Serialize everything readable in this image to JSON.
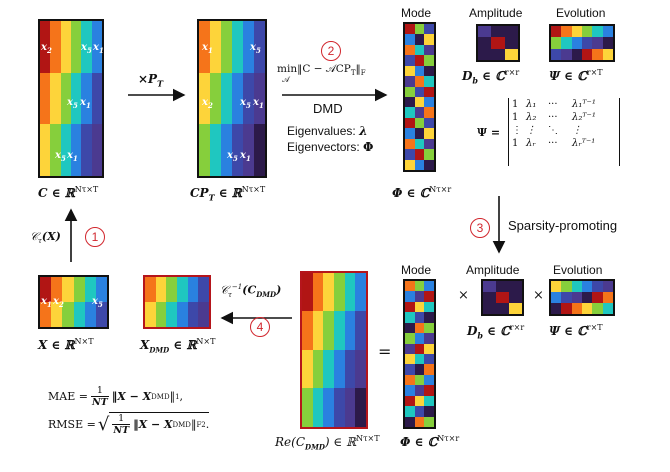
{
  "matrix_labels": {
    "C": "C ∈ ℝ",
    "C_sup": "Nτ×T",
    "CP": "CP",
    "CP_sub": "T",
    "CP_rest": " ∈ ℝ",
    "CP_sup": "Nτ×T",
    "Phi": "Φ ∈ ℂ",
    "Phi_sup": "Nτ×r",
    "Db": "D",
    "Db_sub": "b",
    "Db_rest": " ∈ ℂ",
    "Db_sup": "r×r",
    "Psi": "Ψ ∈ ℂ",
    "Psi_sup": "r×T",
    "X": "X ∈ ℝ",
    "X_sup": "N×T",
    "Xdmd": "X",
    "Xdmd_sub": "DMD",
    "Xdmd_rest": " ∈ ℝ",
    "Xdmd_sup": "N×T",
    "Re_lhs": "Re(C",
    "Re_sub": "DMD",
    "Re_rest": ") ∈ ℝ",
    "Re_sup": "Nτ×T",
    "Phi2": "Φ ∈ ℂ",
    "Phi2_sup": "Nτ×r",
    "Db2": "D",
    "Db2_sub": "b",
    "Db2_rest": " ∈ ℂ",
    "Db2_sup": "r×r",
    "Psi2": "Ψ ∈ ℂ",
    "Psi2_sup": "r×T"
  },
  "headers": {
    "mode_top": "Mode",
    "amplitude_top": "Amplitude",
    "evolution_top": "Evolution",
    "mode_bottom": "Mode",
    "amplitude_bottom": "Amplitude",
    "evolution_bottom": "Evolution"
  },
  "steps": {
    "step1": "1",
    "step2": "2",
    "step3": "3",
    "step4": "4"
  },
  "arrows": {
    "times_pt": "×P",
    "times_pt_sub": "T",
    "dmd_label": "DMD",
    "objective": "min‖C − 𝒜CP",
    "objective_sub": "T",
    "objective_end": "‖",
    "objective_norm_sub": "F",
    "objective_under": "𝒜",
    "eigenvalues": "Eigenvalues:",
    "eigenvalues_sym": "λ",
    "eigenvectors": "Eigenvectors:",
    "eigenvectors_sym": "Φ",
    "sparsity": "Sparsity-promoting",
    "ctau": "𝒞",
    "ctau_sub": "τ",
    "ctau_arg": "(X)",
    "ctau_inv": "𝒞",
    "ctau_inv_sub": "τ",
    "ctau_inv_sup": "−1",
    "ctau_inv_arg": "(C",
    "ctau_inv_arg_sub": "DMD",
    "ctau_inv_arg_end": ")"
  },
  "psi_matrix": {
    "lhs": "Ψ =",
    "rows": [
      [
        "1",
        "λ₁",
        "···",
        "λ₁ᵀ⁻¹"
      ],
      [
        "1",
        "λ₂",
        "···",
        "λ₂ᵀ⁻¹"
      ],
      [
        "⋮",
        "⋮",
        "⋱",
        "⋮"
      ],
      [
        "1",
        "λᵣ",
        "···",
        "λᵣᵀ⁻¹"
      ]
    ]
  },
  "operators": {
    "times1": "×",
    "times2": "×",
    "equals": "="
  },
  "cell_overlays": {
    "c_x2": "x",
    "c_x2_sub": "2",
    "c_x5a": "x",
    "c_x5a_sub": "5",
    "c_x1a": "x",
    "c_x1a_sub": "1",
    "c_x5b": "x",
    "c_x5b_sub": "5",
    "c_x1b": "x",
    "c_x1b_sub": "1",
    "c_x5c": "x",
    "c_x5c_sub": "5",
    "c_x1c": "x",
    "c_x1c_sub": "1",
    "cp_x1a": "x",
    "cp_x1a_sub": "1",
    "cp_x5a": "x",
    "cp_x5a_sub": "5",
    "cp_x2": "x",
    "cp_x2_sub": "2",
    "cp_x5b": "x",
    "cp_x5b_sub": "5",
    "cp_x1b": "x",
    "cp_x1b_sub": "1",
    "cp_x5c": "x",
    "cp_x5c_sub": "5",
    "cp_x1c": "x",
    "cp_x1c_sub": "1",
    "x_x1": "x",
    "x_x1_sub": "1",
    "x_x2": "x",
    "x_x2_sub": "2",
    "x_x5": "x",
    "x_x5_sub": "5"
  },
  "metrics": {
    "mae_lhs": "MAE =",
    "mae_frac_num": "1",
    "mae_frac_den": "NT",
    "mae_rhs": "‖X − X",
    "mae_rhs_sub": "DMD",
    "mae_rhs_end": "‖",
    "mae_norm_sub": "1",
    "mae_tail": ",",
    "rmse_lhs": "RMSE =",
    "rmse_frac_num": "1",
    "rmse_frac_den": "NT",
    "rmse_rhs": "‖X − X",
    "rmse_rhs_sub": "DMD",
    "rmse_rhs_end": "‖",
    "rmse_norm_sub": "F",
    "rmse_norm_sup": "2",
    "rmse_tail": "."
  },
  "colors": {
    "accent_red": "#d1262d",
    "border_dark_red": "#b5151b",
    "c1": "#b11514",
    "c2": "#f5741a",
    "c3": "#fdd43a",
    "c4": "#86cf3c",
    "c5": "#1fc7c0",
    "c6": "#2a81e0",
    "c7": "#3d48a9",
    "c8": "#4b3a90",
    "c9": "#2c1a4a"
  }
}
